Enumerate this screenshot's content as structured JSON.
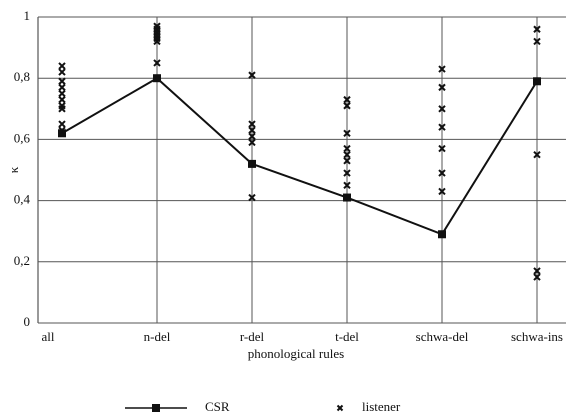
{
  "chart_data": {
    "type": "line",
    "x_label": "phonological rules",
    "y_label": "κ",
    "categories": [
      "all",
      "n-del",
      "r-del",
      "t-del",
      "schwa-del",
      "schwa-ins"
    ],
    "ylim": [
      0,
      1
    ],
    "yticks": [
      0,
      {
        "value": 0.2,
        "label": "0,2"
      },
      {
        "value": 0.4,
        "label": "0,4"
      },
      {
        "value": 0.6,
        "label": "0,6"
      },
      {
        "value": 0.8,
        "label": "0,8"
      },
      1
    ],
    "grid": true,
    "series": [
      {
        "name": "CSR",
        "type": "line",
        "marker": "square",
        "color": "#111111",
        "values": [
          0.62,
          0.8,
          0.52,
          0.41,
          0.29,
          0.79
        ]
      },
      {
        "name": "listener",
        "type": "scatter",
        "marker": "x",
        "color": "#111111",
        "x": [
          "all",
          "all",
          "all",
          "all",
          "all",
          "all",
          "all",
          "all",
          "all",
          "all",
          "n-del",
          "n-del",
          "n-del",
          "n-del",
          "n-del",
          "n-del",
          "n-del",
          "n-del",
          "r-del",
          "r-del",
          "r-del",
          "r-del",
          "r-del",
          "r-del",
          "r-del",
          "t-del",
          "t-del",
          "t-del",
          "t-del",
          "t-del",
          "t-del",
          "t-del",
          "t-del",
          "t-del",
          "schwa-del",
          "schwa-del",
          "schwa-del",
          "schwa-del",
          "schwa-del",
          "schwa-del",
          "schwa-del",
          "schwa-del",
          "schwa-ins",
          "schwa-ins",
          "schwa-ins",
          "schwa-ins",
          "schwa-ins",
          "schwa-ins"
        ],
        "values": [
          0.84,
          0.82,
          0.79,
          0.77,
          0.75,
          0.73,
          0.71,
          0.7,
          0.65,
          0.63,
          0.97,
          0.96,
          0.95,
          0.94,
          0.93,
          0.92,
          0.85,
          0.8,
          0.81,
          0.65,
          0.63,
          0.61,
          0.59,
          0.52,
          0.41,
          0.73,
          0.71,
          0.62,
          0.57,
          0.55,
          0.53,
          0.49,
          0.45,
          0.41,
          0.83,
          0.77,
          0.7,
          0.64,
          0.57,
          0.49,
          0.43,
          0.29,
          0.96,
          0.92,
          0.79,
          0.55,
          0.17,
          0.15
        ]
      }
    ]
  }
}
